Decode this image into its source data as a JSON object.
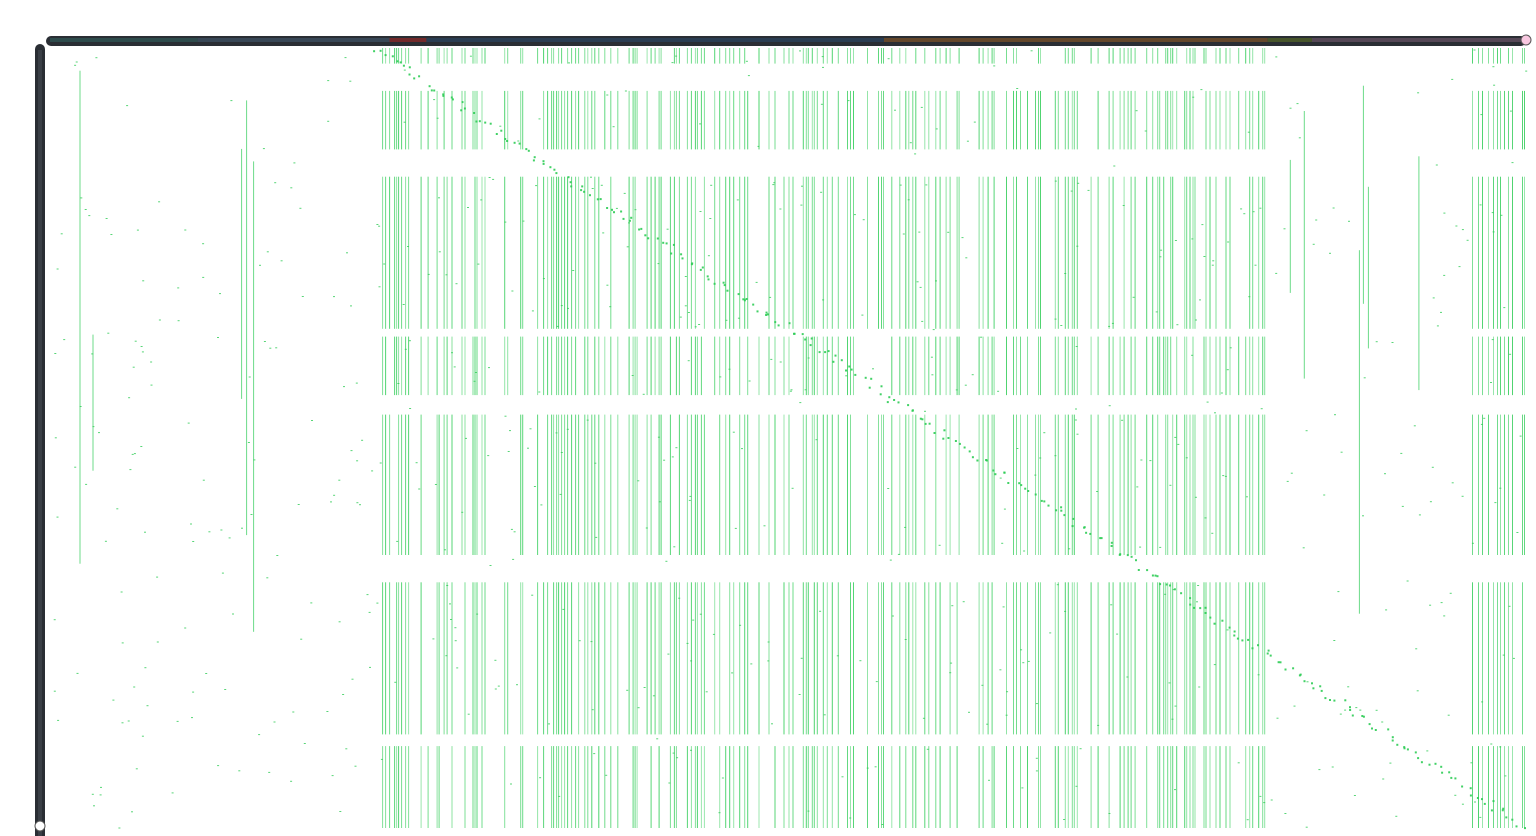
{
  "chart_data": {
    "type": "heatmap",
    "title": "",
    "xlabel": "",
    "ylabel": "",
    "legend": "none",
    "grid": false,
    "cell_color": "#2ecc55",
    "cell_opacity": 0.85,
    "background": "#ffffff",
    "axis_bar_color": "#2a2e34",
    "axis_knob_color": "#f8c8e0",
    "top_axis_segments": [
      {
        "from": 0.0,
        "to": 0.1,
        "color": "#2f4f4f"
      },
      {
        "from": 0.1,
        "to": 0.23,
        "color": "#3a4a5a"
      },
      {
        "from": 0.23,
        "to": 0.255,
        "color": "#7a2a2a"
      },
      {
        "from": 0.255,
        "to": 0.565,
        "color": "#2a3f55"
      },
      {
        "from": 0.565,
        "to": 0.825,
        "color": "#6a4a2a"
      },
      {
        "from": 0.825,
        "to": 0.855,
        "color": "#4a5a2a"
      },
      {
        "from": 0.855,
        "to": 1.0,
        "color": "#5a4a5a"
      }
    ],
    "dense_column_bands": [
      [
        0.225,
        0.245
      ],
      [
        0.245,
        0.27
      ],
      [
        0.272,
        0.3
      ],
      [
        0.305,
        0.325
      ],
      [
        0.33,
        0.358
      ],
      [
        0.362,
        0.385
      ],
      [
        0.392,
        0.415
      ],
      [
        0.42,
        0.445
      ],
      [
        0.45,
        0.475
      ],
      [
        0.48,
        0.505
      ],
      [
        0.51,
        0.535
      ],
      [
        0.54,
        0.565
      ],
      [
        0.57,
        0.6
      ],
      [
        0.6,
        0.64
      ],
      [
        0.645,
        0.672
      ],
      [
        0.676,
        0.7
      ],
      [
        0.705,
        0.735
      ],
      [
        0.74,
        0.77
      ],
      [
        0.772,
        0.8
      ],
      [
        0.805,
        0.825
      ],
      [
        0.96,
        1.0
      ]
    ],
    "sparse_column_bands": [
      [
        0.02,
        0.03
      ],
      [
        0.12,
        0.14
      ],
      [
        0.84,
        0.85
      ],
      [
        0.88,
        0.9
      ],
      [
        0.9,
        0.93
      ]
    ],
    "row_blocks": [
      [
        0.0,
        0.02
      ],
      [
        0.055,
        0.13
      ],
      [
        0.165,
        0.36
      ],
      [
        0.37,
        0.445
      ],
      [
        0.47,
        0.65
      ],
      [
        0.685,
        0.88
      ],
      [
        0.895,
        1.0
      ]
    ],
    "diagonal_trace": true
  }
}
